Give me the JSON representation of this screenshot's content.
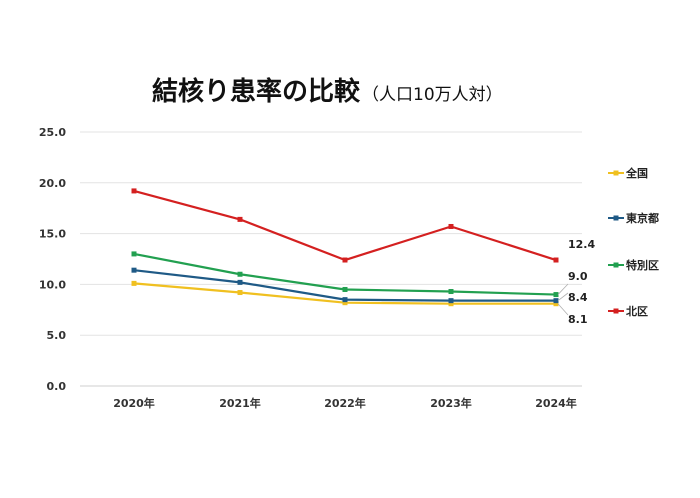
{
  "chart_data": {
    "type": "line",
    "title": "結核り患率の比較",
    "subtitle": "（人口10万人対）",
    "categories": [
      "2020年",
      "2021年",
      "2022年",
      "2023年",
      "2024年"
    ],
    "y_ticks": [
      "0.0",
      "5.0",
      "10.0",
      "15.0",
      "20.0",
      "25.0"
    ],
    "ylim": [
      0,
      25
    ],
    "grid": true,
    "legend_position": "right",
    "series": [
      {
        "name": "全国",
        "color": "#f0c020",
        "values": [
          10.1,
          9.2,
          8.2,
          8.1,
          8.1
        ],
        "end_label": "8.1"
      },
      {
        "name": "東京都",
        "color": "#1f5a86",
        "values": [
          11.4,
          10.2,
          8.5,
          8.4,
          8.4
        ],
        "end_label": "8.4"
      },
      {
        "name": "特別区",
        "color": "#22a050",
        "values": [
          13.0,
          11.0,
          9.5,
          9.3,
          9.0
        ],
        "end_label": "9.0"
      },
      {
        "name": "北区",
        "color": "#d42020",
        "values": [
          19.2,
          16.4,
          12.4,
          15.7,
          12.4
        ],
        "end_label": "12.4"
      }
    ]
  }
}
